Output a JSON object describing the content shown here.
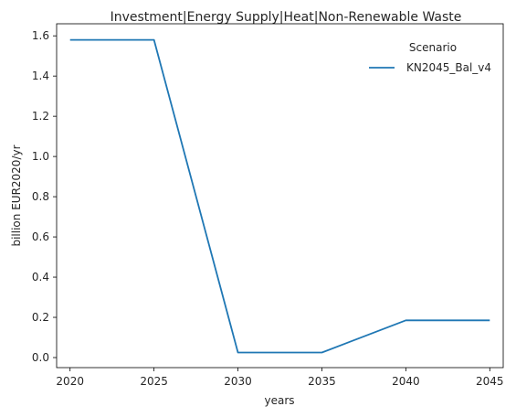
{
  "chart_data": {
    "type": "line",
    "title": "Investment|Energy Supply|Heat|Non-Renewable Waste",
    "xlabel": "years",
    "ylabel": "billion EUR2020/yr",
    "x": [
      2020,
      2025,
      2030,
      2035,
      2040,
      2045
    ],
    "xticks": [
      2020,
      2025,
      2030,
      2035,
      2040,
      2045
    ],
    "yticks": [
      0.0,
      0.2,
      0.4,
      0.6,
      0.8,
      1.0,
      1.2,
      1.4,
      1.6
    ],
    "ytick_labels": [
      "0.0",
      "0.2",
      "0.4",
      "0.6",
      "0.8",
      "1.0",
      "1.2",
      "1.4",
      "1.6"
    ],
    "xlim": [
      2019.2,
      2045.8
    ],
    "ylim": [
      -0.05,
      1.66
    ],
    "grid": false,
    "legend": {
      "title": "Scenario",
      "placement": "top-right"
    },
    "series": [
      {
        "name": "KN2045_Bal_v4",
        "color": "#1f77b4",
        "values": [
          1.58,
          1.58,
          0.025,
          0.025,
          0.185,
          0.185
        ]
      }
    ]
  }
}
